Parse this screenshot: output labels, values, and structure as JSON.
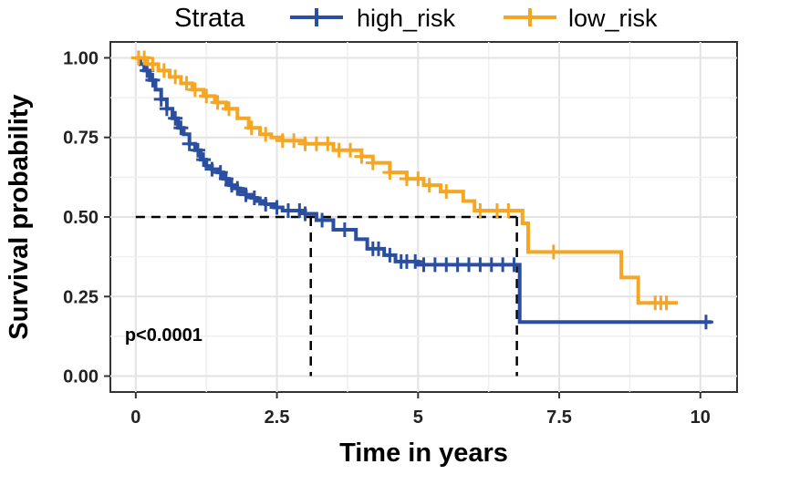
{
  "chart_data": {
    "type": "line",
    "subtype": "kaplan-meier-step",
    "xlabel": "Time in years",
    "ylabel": "Survival probability",
    "xlim": [
      -0.45,
      10.65
    ],
    "ylim": [
      -0.05,
      1.05
    ],
    "x_ticks": [
      0,
      2.5,
      5,
      7.5,
      10
    ],
    "x_tick_labels": [
      "0",
      "2.5",
      "5",
      "7.5",
      "10"
    ],
    "y_ticks": [
      0,
      0.25,
      0.5,
      0.75,
      1.0
    ],
    "y_tick_labels": [
      "0.00",
      "0.25",
      "0.50",
      "0.75",
      "1.00"
    ],
    "grid": true,
    "legend": {
      "title": "Strata",
      "position": "top",
      "entries": [
        "high_risk",
        "low_risk"
      ]
    },
    "annotation": "p<0.0001",
    "median_line": {
      "y": 0.5,
      "x_end": 6.75,
      "drops": [
        3.1,
        6.75
      ]
    },
    "series": [
      {
        "name": "high_risk",
        "color": "#2B4FA0",
        "x": [
          0,
          0.08,
          0.15,
          0.25,
          0.35,
          0.45,
          0.55,
          0.65,
          0.75,
          0.85,
          0.95,
          1.05,
          1.15,
          1.25,
          1.35,
          1.45,
          1.55,
          1.65,
          1.75,
          1.85,
          1.95,
          2.05,
          2.15,
          2.3,
          2.45,
          2.6,
          2.8,
          3.0,
          3.2,
          3.5,
          3.9,
          4.1,
          4.4,
          4.6,
          5.0,
          5.5,
          6.0,
          6.5,
          6.75,
          6.8,
          10.2
        ],
        "y": [
          1.0,
          0.98,
          0.96,
          0.93,
          0.9,
          0.87,
          0.84,
          0.81,
          0.78,
          0.76,
          0.73,
          0.71,
          0.68,
          0.66,
          0.65,
          0.64,
          0.62,
          0.6,
          0.59,
          0.58,
          0.57,
          0.56,
          0.55,
          0.54,
          0.53,
          0.52,
          0.52,
          0.51,
          0.49,
          0.46,
          0.43,
          0.4,
          0.38,
          0.36,
          0.35,
          0.35,
          0.35,
          0.35,
          0.35,
          0.17,
          0.17
        ],
        "censor_x": [
          0.05,
          0.2,
          0.3,
          0.45,
          0.55,
          0.7,
          0.8,
          0.95,
          1.1,
          1.2,
          1.35,
          1.5,
          1.6,
          1.7,
          1.8,
          1.95,
          2.1,
          2.3,
          2.5,
          2.7,
          2.9,
          3.0,
          3.3,
          3.7,
          4.2,
          4.3,
          4.5,
          4.7,
          4.8,
          4.95,
          5.1,
          5.3,
          5.5,
          5.7,
          5.9,
          6.1,
          6.3,
          6.5,
          6.7,
          10.1
        ]
      },
      {
        "name": "low_risk",
        "color": "#F5A623",
        "x": [
          0,
          0.2,
          0.4,
          0.6,
          0.8,
          1.0,
          1.2,
          1.4,
          1.6,
          1.8,
          2.0,
          2.2,
          2.4,
          2.6,
          3.0,
          3.5,
          4.0,
          4.2,
          4.5,
          4.8,
          5.1,
          5.4,
          5.8,
          6.0,
          6.7,
          6.85,
          6.95,
          7.3,
          8.0,
          8.6,
          8.9,
          9.6
        ],
        "y": [
          1.0,
          0.98,
          0.96,
          0.94,
          0.92,
          0.9,
          0.88,
          0.86,
          0.84,
          0.81,
          0.78,
          0.76,
          0.75,
          0.74,
          0.73,
          0.71,
          0.69,
          0.67,
          0.64,
          0.62,
          0.6,
          0.58,
          0.55,
          0.52,
          0.52,
          0.48,
          0.39,
          0.39,
          0.39,
          0.31,
          0.23,
          0.23
        ],
        "censor_x": [
          0.05,
          0.15,
          0.3,
          0.5,
          0.7,
          0.9,
          1.05,
          1.25,
          1.45,
          1.65,
          2.05,
          2.3,
          2.6,
          2.8,
          3.0,
          3.2,
          3.4,
          3.6,
          3.8,
          4.0,
          4.2,
          4.5,
          4.8,
          5.0,
          5.2,
          5.5,
          6.1,
          6.4,
          6.6,
          7.4,
          9.2,
          9.3,
          9.4
        ]
      }
    ]
  }
}
